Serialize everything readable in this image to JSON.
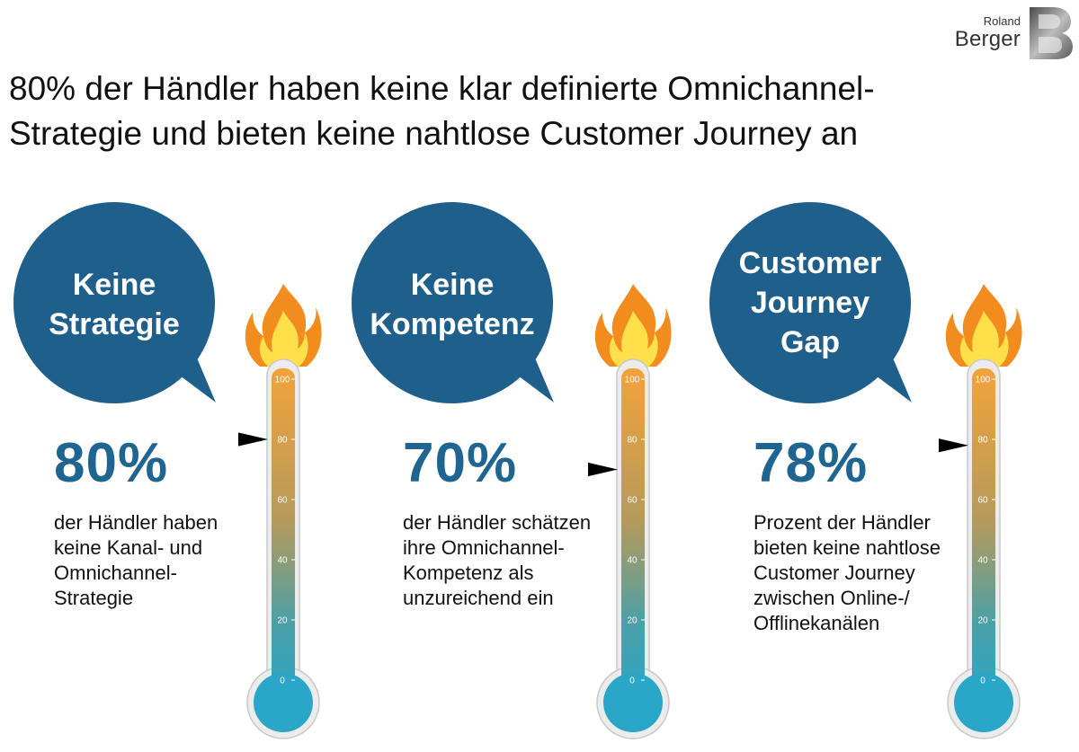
{
  "logo": {
    "small": "Roland",
    "big": "Berger",
    "mark": "B"
  },
  "headline": {
    "lines": [
      "80% der Händler haben keine klar definierte Omnichannel-",
      "Strategie und bieten keine nahtlose Customer Journey an"
    ]
  },
  "colors": {
    "bubble": "#1f5f8b",
    "percent": "#1f6591",
    "thermo_top": "#f2a33a",
    "thermo_bottom": "#2aa6c8",
    "flame_outer": "#f28c1e",
    "flame_inner": "#ffe04a",
    "marker": "#000000"
  },
  "icons": [
    "flame-icon",
    "marker-arrow-icon"
  ],
  "chart_data": {
    "type": "gauge",
    "scale": {
      "min": 0,
      "max": 100,
      "ticks": [
        "0",
        "20",
        "40",
        "60",
        "80",
        "100"
      ]
    },
    "panels": [
      {
        "bubble_lines": [
          "Keine",
          "Strategie"
        ],
        "percent_label": "80%",
        "value": 80,
        "description_lines": [
          "der Händler haben",
          "keine Kanal- und",
          "Omnichannel-",
          "Strategie"
        ]
      },
      {
        "bubble_lines": [
          "Keine",
          "Kompetenz"
        ],
        "percent_label": "70%",
        "value": 70,
        "description_lines": [
          "der Händler schätzen",
          "ihre Omnichannel-",
          "Kompetenz als",
          "unzureichend ein"
        ]
      },
      {
        "bubble_lines": [
          "Customer",
          "Journey",
          "Gap"
        ],
        "percent_label": "78%",
        "value": 78,
        "description_lines": [
          "Prozent der Händler",
          "bieten keine nahtlose",
          "Customer Journey",
          "zwischen Online-/",
          "Offlinekanälen"
        ]
      }
    ]
  }
}
